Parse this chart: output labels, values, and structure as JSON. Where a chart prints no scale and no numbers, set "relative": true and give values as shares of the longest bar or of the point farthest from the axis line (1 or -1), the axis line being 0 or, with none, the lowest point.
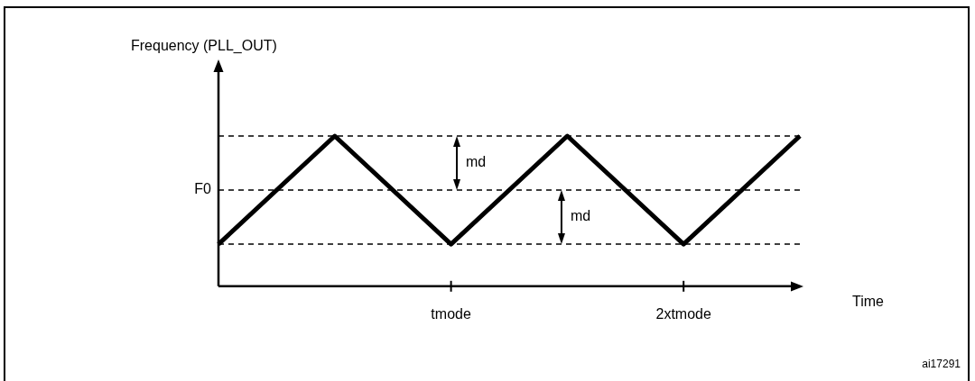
{
  "chart_data": {
    "type": "line",
    "xlabel": "Time",
    "relative": true,
    "categories": [
      null,
      null,
      "tmode",
      null,
      "2xtmode",
      null
    ],
    "series": [
      {
        "color": "#000000",
        "values": [
          0.28,
          1,
          0.28,
          1,
          0.28,
          1
        ]
      }
    ],
    "ref_lines": [
      {
        "axis": "y",
        "value": 1,
        "label": null,
        "line_style": "dashed"
      },
      {
        "axis": "y",
        "value": 0.64,
        "label": "F0",
        "line_style": "dashed"
      },
      {
        "axis": "y",
        "value": 0.28,
        "label": null,
        "line_style": "dashed"
      }
    ],
    "annotations": [
      "md",
      "md",
      "Frequency (PLL_OUT)",
      "ai17291"
    ],
    "marker": "none",
    "line_style": "solid"
  }
}
